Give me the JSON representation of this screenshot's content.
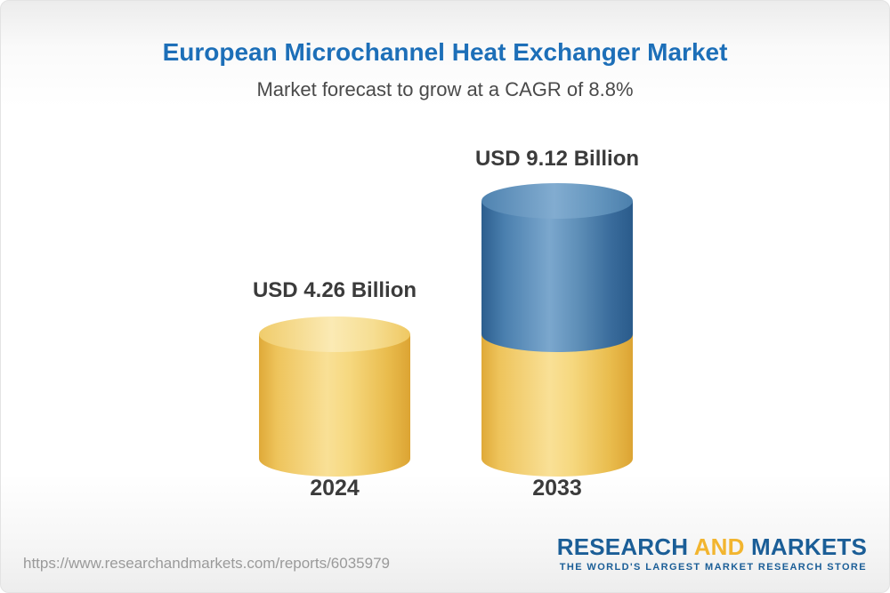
{
  "header": {
    "title": "European Microchannel Heat Exchanger Market",
    "subtitle": "Market forecast to grow at a CAGR of 8.8%"
  },
  "chart_data": {
    "type": "bar",
    "bar_style": "3d-cylinder",
    "categories": [
      "2024",
      "2033"
    ],
    "values": [
      4.26,
      9.12
    ],
    "unit": "USD Billion",
    "value_labels": [
      "USD 4.26 Billion",
      "USD 9.12 Billion"
    ],
    "title": "European Microchannel Heat Exchanger Market",
    "subtitle": "Market forecast to grow at a CAGR of 8.8%",
    "cagr_percent": 8.8,
    "stacked_note": "2033 cylinder shows the 2024 base value in gold with forecast growth segment in blue on top",
    "colors": {
      "bar_2024": "#F2C659",
      "bar_2033_base": "#F2C659",
      "bar_2033_growth": "#3D72A4",
      "title": "#1D6FB8",
      "value_text": "#3B3B3B"
    },
    "xlabel": "",
    "ylabel": "",
    "legend": "none",
    "grid": false
  },
  "bars": [
    {
      "year": "2024",
      "label": "USD 4.26 Billion"
    },
    {
      "year": "2033",
      "label": "USD 9.12 Billion"
    }
  ],
  "footer": {
    "url": "https://www.researchandmarkets.com/reports/6035979",
    "logo": {
      "research": "RESEARCH",
      "and": " AND ",
      "markets": "MARKETS",
      "tagline": "THE WORLD'S LARGEST MARKET RESEARCH STORE"
    }
  }
}
